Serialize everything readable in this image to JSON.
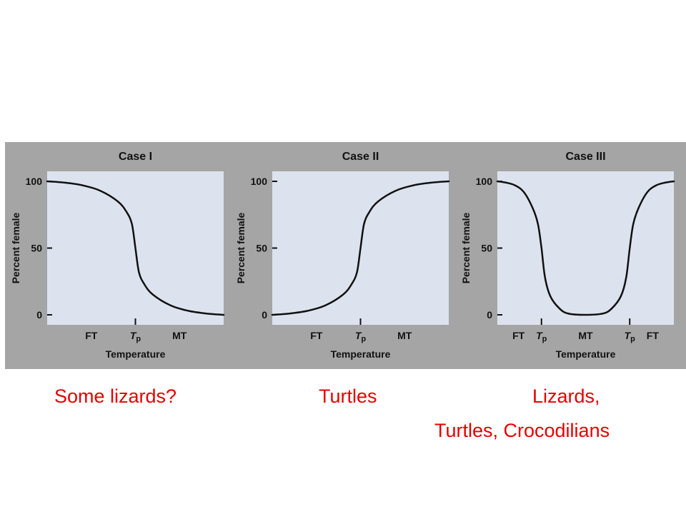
{
  "colors": {
    "panel_background": "#a5a5a5",
    "plot_background": "#dde3ee",
    "curve": "#111111",
    "caption_red": "#e60000"
  },
  "chart_data": [
    {
      "type": "line",
      "title": "Case I",
      "xlabel": "Temperature",
      "ylabel": "Percent female",
      "ylim": [
        0,
        100
      ],
      "y_ticks": [
        "0",
        "50",
        "100"
      ],
      "x_ticks": [
        {
          "label": "FT",
          "pos": 0.25
        },
        {
          "label": "T",
          "sub": "p",
          "pos": 0.5,
          "marked": true
        },
        {
          "label": "MT",
          "pos": 0.75
        }
      ],
      "series": [
        {
          "x": [
            0,
            0.1,
            0.2,
            0.3,
            0.4,
            0.45,
            0.48,
            0.5,
            0.52,
            0.55,
            0.6,
            0.7,
            0.8,
            0.9,
            1.0
          ],
          "values": [
            100,
            99,
            97,
            93,
            85,
            77,
            68,
            50,
            32,
            23,
            15,
            7,
            3,
            1,
            0
          ]
        }
      ]
    },
    {
      "type": "line",
      "title": "Case II",
      "xlabel": "Temperature",
      "ylabel": "Percent female",
      "ylim": [
        0,
        100
      ],
      "y_ticks": [
        "0",
        "50",
        "100"
      ],
      "x_ticks": [
        {
          "label": "FT",
          "pos": 0.25
        },
        {
          "label": "T",
          "sub": "p",
          "pos": 0.5,
          "marked": true
        },
        {
          "label": "MT",
          "pos": 0.75
        }
      ],
      "series": [
        {
          "x": [
            0,
            0.1,
            0.2,
            0.3,
            0.4,
            0.45,
            0.48,
            0.5,
            0.52,
            0.55,
            0.6,
            0.7,
            0.8,
            0.9,
            1.0
          ],
          "values": [
            0,
            1,
            3,
            7,
            15,
            23,
            32,
            50,
            68,
            77,
            85,
            93,
            97,
            99,
            100
          ]
        }
      ]
    },
    {
      "type": "line",
      "title": "Case III",
      "xlabel": "Temperature",
      "ylabel": "Percent female",
      "ylim": [
        0,
        100
      ],
      "y_ticks": [
        "0",
        "50",
        "100"
      ],
      "x_ticks": [
        {
          "label": "FT",
          "pos": 0.12
        },
        {
          "label": "T",
          "sub": "p",
          "pos": 0.25,
          "marked": true
        },
        {
          "label": "MT",
          "pos": 0.5
        },
        {
          "label": "T",
          "sub": "p",
          "pos": 0.75,
          "marked": true
        },
        {
          "label": "FT",
          "pos": 0.88
        }
      ],
      "series": [
        {
          "x": [
            0,
            0.05,
            0.1,
            0.15,
            0.2,
            0.23,
            0.25,
            0.27,
            0.3,
            0.35,
            0.4,
            0.5,
            0.6,
            0.65,
            0.7,
            0.73,
            0.75,
            0.77,
            0.8,
            0.85,
            0.9,
            0.95,
            1.0
          ],
          "values": [
            100,
            99,
            97,
            92,
            80,
            68,
            50,
            28,
            14,
            5,
            1,
            0,
            1,
            5,
            14,
            28,
            50,
            68,
            80,
            92,
            97,
            99,
            100
          ]
        }
      ]
    }
  ],
  "captions": {
    "case1": "Some lizards?",
    "case2": "Turtles",
    "case3_line1": "Lizards,",
    "case3_line2": "Turtles,  Crocodilians"
  }
}
